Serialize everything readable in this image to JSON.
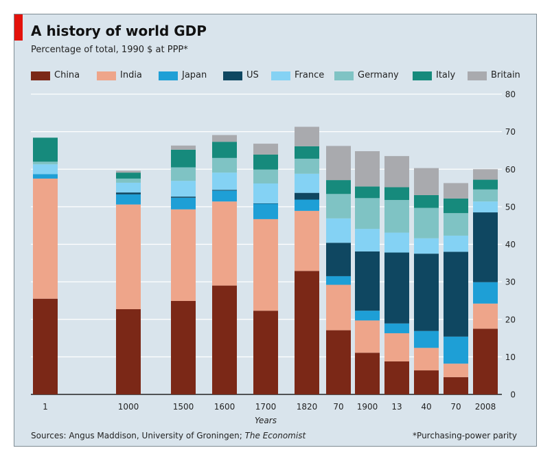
{
  "colors": {
    "China": "#7b2817",
    "India": "#eea58a",
    "Japan": "#1e9fd6",
    "US": "#0f4761",
    "France": "#84d2f4",
    "Germany": "#7fc3c4",
    "Italy": "#168a7c",
    "Britain": "#a9aaae"
  },
  "header": {
    "title": "A history of world GDP",
    "subtitle": "Percentage of total, 1990 $  at PPP*"
  },
  "footer": {
    "sources_prefix": "Sources: Angus Maddison, University of Groningen; ",
    "sources_italic": "The Economist",
    "footnote": "*Purchasing-power parity"
  },
  "chart_data": {
    "type": "bar",
    "stacked": true,
    "title": "A history of world GDP",
    "subtitle": "Percentage of total, 1990 $  at PPP*",
    "xlabel": "Years",
    "ylabel": "",
    "ylim": [
      0,
      80
    ],
    "yticks": [
      0,
      10,
      20,
      30,
      40,
      50,
      60,
      70,
      80
    ],
    "grid": true,
    "legend_position": "top",
    "categories": [
      "1",
      "1000",
      "1500",
      "1600",
      "1700",
      "1820",
      "70",
      "1900",
      "13",
      "40",
      "70",
      "2008"
    ],
    "series": [
      {
        "name": "China",
        "values": [
          25.5,
          22.7,
          24.9,
          29.0,
          22.3,
          32.9,
          17.1,
          11.1,
          8.8,
          6.4,
          4.6,
          17.5
        ]
      },
      {
        "name": "India",
        "values": [
          32.0,
          27.9,
          24.4,
          22.4,
          24.4,
          16.0,
          12.1,
          8.6,
          7.5,
          6.0,
          3.6,
          6.7
        ]
      },
      {
        "name": "Japan",
        "values": [
          1.2,
          2.7,
          3.1,
          2.9,
          4.1,
          3.0,
          2.3,
          2.6,
          2.6,
          4.5,
          7.2,
          5.7
        ]
      },
      {
        "name": "US",
        "values": [
          0.0,
          0.5,
          0.3,
          0.2,
          0.1,
          1.8,
          8.9,
          15.8,
          18.9,
          20.6,
          22.6,
          18.6
        ]
      },
      {
        "name": "France",
        "values": [
          2.6,
          2.6,
          4.2,
          4.6,
          5.3,
          5.1,
          6.5,
          6.0,
          5.3,
          4.1,
          4.3,
          2.9
        ]
      },
      {
        "name": "Germany",
        "values": [
          0.7,
          1.1,
          3.6,
          3.9,
          3.7,
          4.0,
          6.5,
          8.2,
          8.7,
          8.1,
          6.0,
          3.2
        ]
      },
      {
        "name": "Italy",
        "values": [
          6.4,
          1.6,
          4.7,
          4.3,
          4.0,
          3.3,
          3.7,
          3.1,
          3.4,
          3.4,
          3.9,
          2.6
        ]
      },
      {
        "name": "Britain",
        "values": [
          0.0,
          0.5,
          1.1,
          1.8,
          2.9,
          5.2,
          9.1,
          9.4,
          8.3,
          7.2,
          4.1,
          2.8
        ]
      }
    ]
  }
}
